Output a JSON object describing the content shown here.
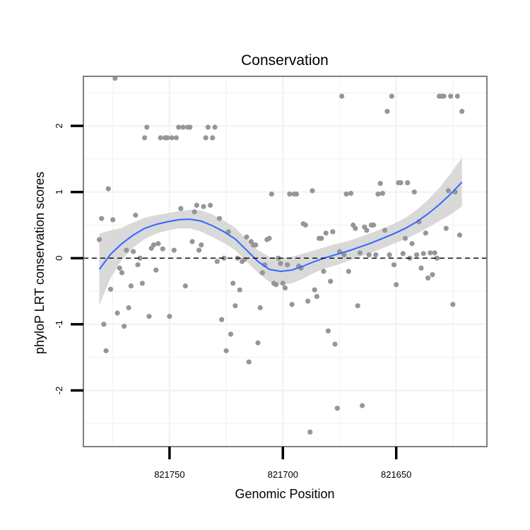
{
  "chart_data": {
    "type": "scatter",
    "title": "Conservation",
    "xlabel": "Genomic Position",
    "ylabel": "phyloP LRT conservation scores",
    "x_reversed": true,
    "xlim": [
      821788,
      821610
    ],
    "ylim": [
      -2.85,
      2.75
    ],
    "xticks": [
      {
        "value": 821750,
        "label": "821750"
      },
      {
        "value": 821700,
        "label": "821700"
      },
      {
        "value": 821650,
        "label": "821650"
      }
    ],
    "yticks": [
      {
        "value": -2,
        "label": "-2"
      },
      {
        "value": -1,
        "label": "-1"
      },
      {
        "value": 0,
        "label": "0"
      },
      {
        "value": 1,
        "label": "1"
      },
      {
        "value": 2,
        "label": "2"
      }
    ],
    "reference_line": {
      "y": 0,
      "style": "dashed"
    },
    "grid": true,
    "colors": {
      "points": "#969696",
      "smooth": "#3366ff",
      "band": "#d9d9d9",
      "frame": "#808080",
      "grid": "#f2f2f2"
    },
    "points": [
      [
        821781,
        0.28
      ],
      [
        821780,
        0.6
      ],
      [
        821779,
        -1.0
      ],
      [
        821778,
        -1.4
      ],
      [
        821777,
        1.05
      ],
      [
        821776,
        -0.47
      ],
      [
        821775,
        0.58
      ],
      [
        821774,
        2.72
      ],
      [
        821773,
        -0.83
      ],
      [
        821772,
        -0.15
      ],
      [
        821771,
        -0.22
      ],
      [
        821770,
        -1.03
      ],
      [
        821769,
        0.12
      ],
      [
        821768,
        -0.75
      ],
      [
        821767,
        -0.42
      ],
      [
        821766,
        0.1
      ],
      [
        821765,
        0.65
      ],
      [
        821764,
        -0.1
      ],
      [
        821763,
        0.0
      ],
      [
        821762,
        -0.38
      ],
      [
        821761,
        1.82
      ],
      [
        821760,
        1.98
      ],
      [
        821759,
        -0.88
      ],
      [
        821758,
        0.15
      ],
      [
        821757,
        0.2
      ],
      [
        821756,
        -0.18
      ],
      [
        821755,
        0.22
      ],
      [
        821754,
        1.82
      ],
      [
        821753,
        0.14
      ],
      [
        821752,
        1.82
      ],
      [
        821751,
        1.82
      ],
      [
        821750,
        -0.88
      ],
      [
        821749,
        1.82
      ],
      [
        821748,
        0.12
      ],
      [
        821747,
        1.82
      ],
      [
        821746,
        1.98
      ],
      [
        821745,
        0.75
      ],
      [
        821744,
        1.98
      ],
      [
        821743,
        -0.42
      ],
      [
        821742,
        1.98
      ],
      [
        821741,
        1.98
      ],
      [
        821740,
        0.25
      ],
      [
        821739,
        0.7
      ],
      [
        821738,
        0.8
      ],
      [
        821737,
        0.12
      ],
      [
        821736,
        0.2
      ],
      [
        821735,
        0.78
      ],
      [
        821734,
        1.82
      ],
      [
        821733,
        1.98
      ],
      [
        821732,
        0.8
      ],
      [
        821731,
        1.82
      ],
      [
        821730,
        1.98
      ],
      [
        821729,
        -0.05
      ],
      [
        821728,
        0.6
      ],
      [
        821727,
        -0.93
      ],
      [
        821726,
        0.0
      ],
      [
        821725,
        -1.4
      ],
      [
        821724,
        0.4
      ],
      [
        821723,
        -1.15
      ],
      [
        821722,
        -0.38
      ],
      [
        821721,
        -0.72
      ],
      [
        821720,
        0.0
      ],
      [
        821719,
        -0.48
      ],
      [
        821718,
        -0.05
      ],
      [
        821717,
        -0.02
      ],
      [
        821716,
        0.32
      ],
      [
        821715,
        -1.57
      ],
      [
        821714,
        0.25
      ],
      [
        821713,
        0.2
      ],
      [
        821712,
        0.2
      ],
      [
        821711,
        -1.28
      ],
      [
        821710,
        -0.75
      ],
      [
        821709,
        -0.22
      ],
      [
        821708,
        -0.1
      ],
      [
        821707,
        0.28
      ],
      [
        821706,
        0.3
      ],
      [
        821705,
        0.97
      ],
      [
        821704,
        -0.38
      ],
      [
        821703,
        -0.4
      ],
      [
        821702,
        0.0
      ],
      [
        821701,
        -0.08
      ],
      [
        821700,
        -0.38
      ],
      [
        821699,
        -0.45
      ],
      [
        821698,
        -0.1
      ],
      [
        821697,
        0.97
      ],
      [
        821696,
        -0.7
      ],
      [
        821695,
        0.97
      ],
      [
        821694,
        0.97
      ],
      [
        821693,
        -0.12
      ],
      [
        821692,
        -0.15
      ],
      [
        821691,
        0.52
      ],
      [
        821690,
        0.5
      ],
      [
        821689,
        -0.65
      ],
      [
        821688,
        -2.63
      ],
      [
        821687,
        1.02
      ],
      [
        821686,
        -0.48
      ],
      [
        821685,
        -0.58
      ],
      [
        821684,
        0.3
      ],
      [
        821683,
        0.3
      ],
      [
        821682,
        -0.2
      ],
      [
        821681,
        0.38
      ],
      [
        821680,
        -1.1
      ],
      [
        821679,
        -0.35
      ],
      [
        821678,
        0.4
      ],
      [
        821677,
        -1.3
      ],
      [
        821676,
        -2.27
      ],
      [
        821675,
        0.1
      ],
      [
        821674,
        2.45
      ],
      [
        821673,
        0.05
      ],
      [
        821672,
        0.97
      ],
      [
        821671,
        -0.2
      ],
      [
        821670,
        0.98
      ],
      [
        821669,
        0.5
      ],
      [
        821668,
        0.45
      ],
      [
        821667,
        -0.72
      ],
      [
        821666,
        0.08
      ],
      [
        821665,
        -2.23
      ],
      [
        821664,
        0.47
      ],
      [
        821663,
        0.42
      ],
      [
        821662,
        0.05
      ],
      [
        821661,
        0.5
      ],
      [
        821660,
        0.5
      ],
      [
        821659,
        0.05
      ],
      [
        821658,
        0.97
      ],
      [
        821657,
        1.13
      ],
      [
        821656,
        0.98
      ],
      [
        821655,
        0.42
      ],
      [
        821654,
        2.22
      ],
      [
        821653,
        0.05
      ],
      [
        821652,
        2.45
      ],
      [
        821651,
        -0.1
      ],
      [
        821650,
        -0.4
      ],
      [
        821649,
        1.14
      ],
      [
        821648,
        1.14
      ],
      [
        821647,
        0.07
      ],
      [
        821646,
        0.3
      ],
      [
        821645,
        1.14
      ],
      [
        821644,
        0.0
      ],
      [
        821643,
        0.22
      ],
      [
        821642,
        1.0
      ],
      [
        821641,
        0.05
      ],
      [
        821640,
        0.55
      ],
      [
        821639,
        -0.15
      ],
      [
        821638,
        0.07
      ],
      [
        821637,
        0.38
      ],
      [
        821636,
        -0.3
      ],
      [
        821635,
        0.08
      ],
      [
        821634,
        -0.25
      ],
      [
        821633,
        0.08
      ],
      [
        821632,
        0.0
      ],
      [
        821631,
        2.45
      ],
      [
        821630,
        2.45
      ],
      [
        821629,
        2.45
      ],
      [
        821628,
        0.45
      ],
      [
        821627,
        1.02
      ],
      [
        821626,
        2.45
      ],
      [
        821625,
        -0.7
      ],
      [
        821624,
        1.0
      ],
      [
        821623,
        2.45
      ],
      [
        821622,
        0.35
      ],
      [
        821621,
        2.22
      ]
    ],
    "smooth": {
      "x": [
        821781,
        821776,
        821771,
        821766,
        821761,
        821756,
        821751,
        821746,
        821741,
        821736,
        821731,
        821726,
        821721,
        821716,
        821711,
        821706,
        821701,
        821696,
        821691,
        821686,
        821681,
        821676,
        821671,
        821666,
        821661,
        821656,
        821651,
        821646,
        821641,
        821636,
        821631,
        821626,
        821621
      ],
      "y": [
        -0.17,
        0.06,
        0.22,
        0.35,
        0.45,
        0.51,
        0.55,
        0.58,
        0.59,
        0.56,
        0.49,
        0.4,
        0.29,
        0.12,
        -0.05,
        -0.17,
        -0.2,
        -0.18,
        -0.12,
        -0.05,
        0.01,
        0.06,
        0.11,
        0.17,
        0.23,
        0.3,
        0.37,
        0.45,
        0.55,
        0.67,
        0.81,
        0.97,
        1.15
      ],
      "lower": [
        -0.71,
        -0.3,
        -0.02,
        0.16,
        0.29,
        0.37,
        0.42,
        0.45,
        0.45,
        0.4,
        0.32,
        0.23,
        0.12,
        -0.05,
        -0.22,
        -0.36,
        -0.4,
        -0.38,
        -0.31,
        -0.22,
        -0.15,
        -0.1,
        -0.04,
        0.02,
        0.08,
        0.15,
        0.22,
        0.29,
        0.37,
        0.46,
        0.56,
        0.66,
        0.78
      ],
      "upper": [
        0.37,
        0.42,
        0.46,
        0.54,
        0.61,
        0.65,
        0.68,
        0.71,
        0.73,
        0.72,
        0.66,
        0.57,
        0.46,
        0.29,
        0.12,
        0.02,
        0.0,
        0.02,
        0.07,
        0.12,
        0.17,
        0.22,
        0.26,
        0.32,
        0.38,
        0.45,
        0.52,
        0.61,
        0.73,
        0.88,
        1.06,
        1.28,
        1.52
      ]
    }
  }
}
